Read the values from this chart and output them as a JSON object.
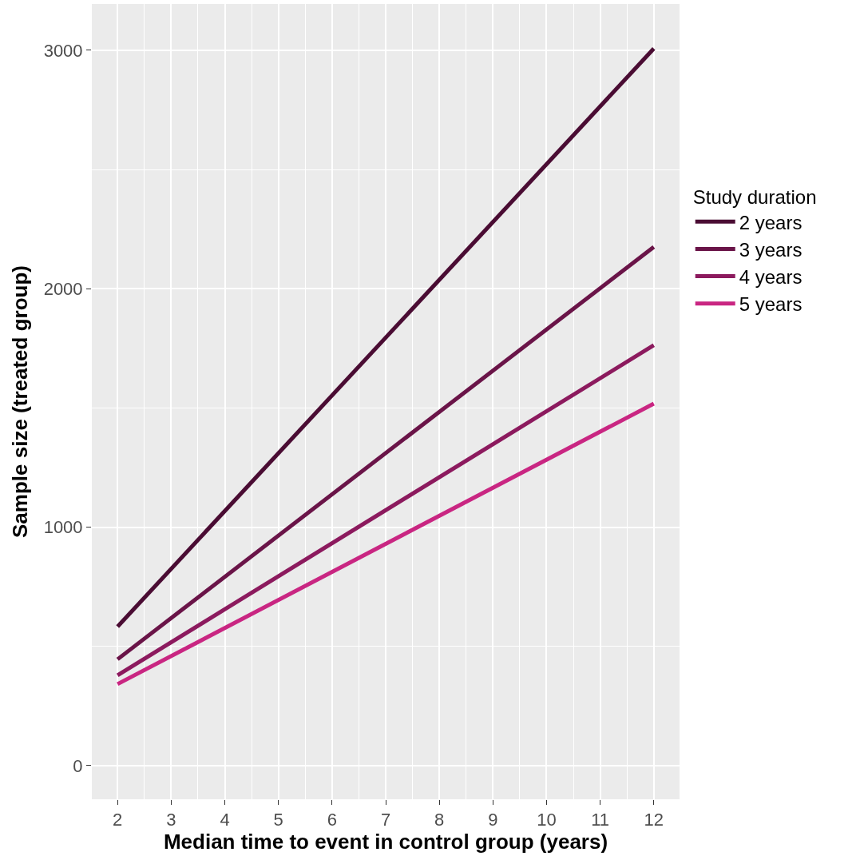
{
  "chart_data": {
    "type": "line",
    "xlabel": "Median time to event in control group (years)",
    "ylabel": "Sample size (treated group)",
    "legend_title": "Study duration",
    "x": [
      2,
      12
    ],
    "series": [
      {
        "name": "2 years",
        "color": "#4a0c33",
        "values": [
          583,
          3007
        ]
      },
      {
        "name": "3 years",
        "color": "#6a1448",
        "values": [
          446,
          2175
        ]
      },
      {
        "name": "4 years",
        "color": "#8c1a5e",
        "values": [
          379,
          1763
        ]
      },
      {
        "name": "5 years",
        "color": "#c92682",
        "values": [
          342,
          1518
        ]
      }
    ],
    "xlim": [
      1.52,
      12.48
    ],
    "xticks": [
      2,
      3,
      4,
      5,
      6,
      7,
      8,
      9,
      10,
      11,
      12
    ],
    "ylim": [
      -141,
      3194
    ],
    "yticks": [
      0,
      1000,
      2000,
      3000
    ],
    "grid": true,
    "legend": "right",
    "marker": "none",
    "line_style": "solid"
  }
}
